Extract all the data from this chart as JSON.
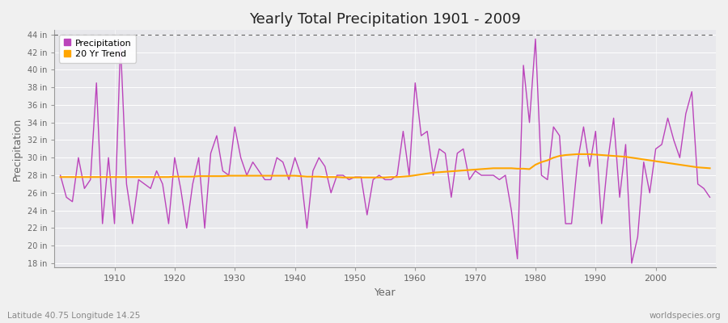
{
  "title": "Yearly Total Precipitation 1901 - 2009",
  "xlabel": "Year",
  "ylabel": "Precipitation",
  "lat_lon_label": "Latitude 40.75 Longitude 14.25",
  "watermark": "worldspecies.org",
  "background_color": "#f0f0f0",
  "plot_bg_color": "#e8e8ec",
  "precip_color": "#bb44bb",
  "trend_color": "#ffa500",
  "ylim": [
    17.5,
    44.5
  ],
  "ytick_values": [
    18,
    20,
    22,
    24,
    26,
    28,
    30,
    32,
    34,
    36,
    38,
    40,
    42,
    44
  ],
  "dotted_line_y": 44,
  "xtick_years": [
    1910,
    1920,
    1930,
    1940,
    1950,
    1960,
    1970,
    1980,
    1990,
    2000
  ],
  "years": [
    1901,
    1902,
    1903,
    1904,
    1905,
    1906,
    1907,
    1908,
    1909,
    1910,
    1911,
    1912,
    1913,
    1914,
    1915,
    1916,
    1917,
    1918,
    1919,
    1920,
    1921,
    1922,
    1923,
    1924,
    1925,
    1926,
    1927,
    1928,
    1929,
    1930,
    1931,
    1932,
    1933,
    1934,
    1935,
    1936,
    1937,
    1938,
    1939,
    1940,
    1941,
    1942,
    1943,
    1944,
    1945,
    1946,
    1947,
    1948,
    1949,
    1950,
    1951,
    1952,
    1953,
    1954,
    1955,
    1956,
    1957,
    1958,
    1959,
    1960,
    1961,
    1962,
    1963,
    1964,
    1965,
    1966,
    1967,
    1968,
    1969,
    1970,
    1971,
    1972,
    1973,
    1974,
    1975,
    1976,
    1977,
    1978,
    1979,
    1980,
    1981,
    1982,
    1983,
    1984,
    1985,
    1986,
    1987,
    1988,
    1989,
    1990,
    1991,
    1992,
    1993,
    1994,
    1995,
    1996,
    1997,
    1998,
    1999,
    2000,
    2001,
    2002,
    2003,
    2004,
    2005,
    2006,
    2007,
    2008,
    2009
  ],
  "precip": [
    28.0,
    25.5,
    25.0,
    30.0,
    26.5,
    27.5,
    38.5,
    22.5,
    30.0,
    22.5,
    43.0,
    27.0,
    22.5,
    27.5,
    27.0,
    26.5,
    28.5,
    27.0,
    22.5,
    30.0,
    26.5,
    22.0,
    27.0,
    30.0,
    22.0,
    30.5,
    32.5,
    28.5,
    28.0,
    33.5,
    30.0,
    28.0,
    29.5,
    28.5,
    27.5,
    27.5,
    30.0,
    29.5,
    27.5,
    30.0,
    28.0,
    22.0,
    28.5,
    30.0,
    29.0,
    26.0,
    28.0,
    28.0,
    27.5,
    27.8,
    27.8,
    23.5,
    27.5,
    28.0,
    27.5,
    27.5,
    28.0,
    33.0,
    28.0,
    38.5,
    32.5,
    33.0,
    28.0,
    31.0,
    30.5,
    25.5,
    30.5,
    31.0,
    27.5,
    28.5,
    28.0,
    28.0,
    28.0,
    27.5,
    28.0,
    24.0,
    18.5,
    40.5,
    34.0,
    43.5,
    28.0,
    27.5,
    33.5,
    32.5,
    22.5,
    22.5,
    29.5,
    33.5,
    29.0,
    33.0,
    22.5,
    29.5,
    34.5,
    25.5,
    31.5,
    18.0,
    21.0,
    29.5,
    26.0,
    31.0,
    31.5,
    34.5,
    32.0,
    30.0,
    35.0,
    37.5,
    27.0,
    26.5,
    25.5
  ],
  "trend": [
    27.8,
    27.8,
    27.8,
    27.8,
    27.8,
    27.8,
    27.8,
    27.8,
    27.8,
    27.8,
    27.8,
    27.8,
    27.8,
    27.8,
    27.8,
    27.8,
    27.8,
    27.8,
    27.8,
    27.85,
    27.85,
    27.85,
    27.85,
    27.9,
    27.9,
    27.9,
    27.9,
    27.9,
    27.95,
    27.95,
    27.95,
    27.95,
    27.95,
    27.95,
    27.95,
    27.95,
    27.95,
    27.95,
    27.95,
    27.95,
    27.9,
    27.85,
    27.85,
    27.85,
    27.8,
    27.8,
    27.8,
    27.75,
    27.75,
    27.75,
    27.75,
    27.75,
    27.75,
    27.75,
    27.75,
    27.8,
    27.8,
    27.85,
    27.9,
    28.0,
    28.1,
    28.2,
    28.3,
    28.35,
    28.4,
    28.45,
    28.5,
    28.55,
    28.6,
    28.65,
    28.7,
    28.75,
    28.8,
    28.8,
    28.8,
    28.8,
    28.75,
    28.75,
    28.7,
    29.2,
    29.5,
    29.7,
    30.0,
    30.2,
    30.3,
    30.35,
    30.4,
    30.4,
    30.4,
    30.35,
    30.3,
    30.25,
    30.2,
    30.15,
    30.1,
    30.0,
    29.9,
    29.8,
    29.7,
    29.6,
    29.5,
    29.4,
    29.3,
    29.2,
    29.1,
    29.0,
    28.9,
    28.85,
    28.8
  ]
}
